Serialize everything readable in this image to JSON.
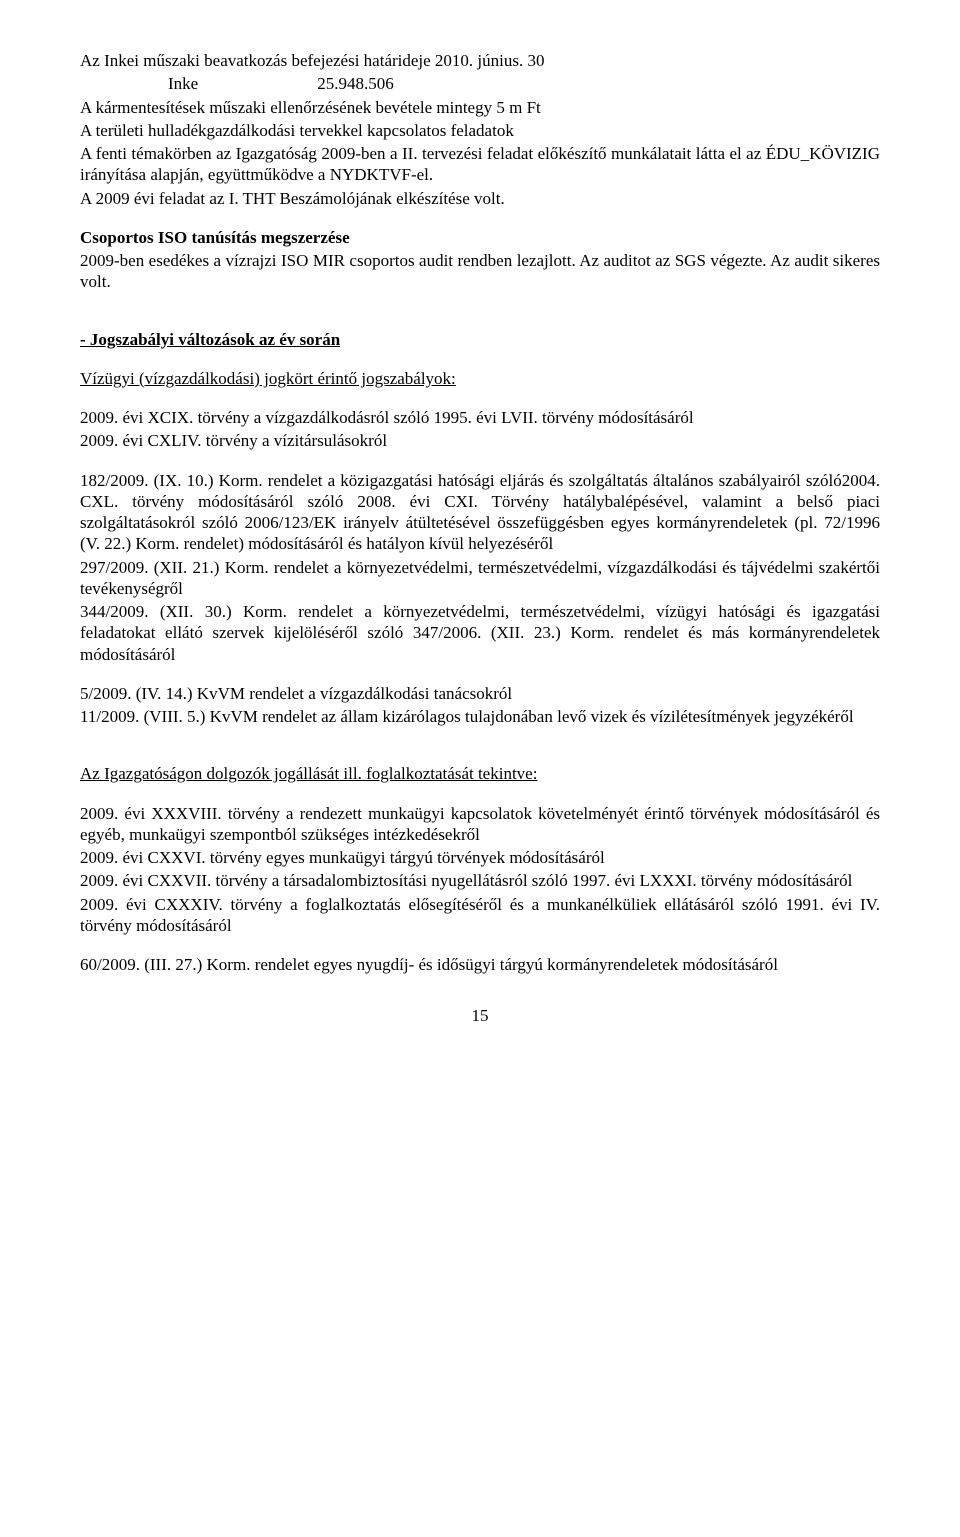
{
  "p1": "Az Inkei műszaki beavatkozás befejezési határideje 2010. június. 30",
  "p2": "Inke                            25.948.506",
  "p3": "A kármentesítések műszaki ellenőrzésének bevétele mintegy 5 m Ft",
  "p4": "A területi hulladékgazdálkodási tervekkel kapcsolatos feladatok",
  "p5": "A fenti témakörben az Igazgatóság 2009-ben a II. tervezési feladat előkészítő munkálatait látta el az ÉDU_KÖVIZIG irányítása alapján, együttműködve a NYDKTVF-el.",
  "p6": "A 2009 évi feladat az I. THT Beszámolójának elkészítése volt.",
  "h1": "Csoportos ISO tanúsítás megszerzése",
  "p7": "2009-ben esedékes a vízrajzi ISO MIR csoportos audit rendben lezajlott. Az auditot az SGS végezte. Az audit sikeres volt.",
  "h2": "- Jogszabályi változások az év során",
  "h3": "Vízügyi (vízgazdálkodási) jogkört érintő jogszabályok:",
  "p8": "2009. évi XCIX. törvény a vízgazdálkodásról szóló 1995. évi LVII. törvény módosításáról",
  "p9": "2009. évi CXLIV. törvény a vízitársulásokról",
  "p10": "182/2009. (IX. 10.) Korm. rendelet a közigazgatási hatósági eljárás és szolgáltatás általános szabályairól szóló2004. CXL. törvény módosításáról szóló 2008. évi CXI. Törvény hatálybalépésével, valamint a belső piaci szolgáltatásokról szóló 2006/123/EK irányelv átültetésével összefüggésben egyes kormányrendeletek (pl. 72/1996 (V. 22.) Korm. rendelet) módosításáról és hatályon kívül helyezéséről",
  "p11": "297/2009. (XII. 21.) Korm. rendelet a környezetvédelmi, természetvédelmi, vízgazdálkodási és tájvédelmi szakértői tevékenységről",
  "p12": "344/2009. (XII. 30.) Korm. rendelet a környezetvédelmi, természetvédelmi, vízügyi hatósági és igazgatási feladatokat ellátó szervek kijelöléséről szóló 347/2006. (XII. 23.) Korm. rendelet és más kormányrendeletek módosításáról",
  "p13": "5/2009. (IV. 14.) KvVM rendelet a vízgazdálkodási tanácsokról",
  "p14": "11/2009. (VIII. 5.) KvVM rendelet az állam kizárólagos tulajdonában levő vizek és vízilétesítmények jegyzékéről",
  "h4": "Az Igazgatóságon dolgozók jogállását ill. foglalkoztatását tekintve:",
  "p15": "2009. évi XXXVIII. törvény a rendezett munkaügyi kapcsolatok követelményét érintő törvények módosításáról és egyéb, munkaügyi szempontból szükséges intézkedésekről",
  "p16": "2009. évi CXXVI. törvény egyes munkaügyi tárgyú törvények módosításáról",
  "p17": "2009. évi CXXVII. törvény a társadalombiztosítási nyugellátásról szóló 1997. évi LXXXI. törvény módosításáról",
  "p18": "2009. évi CXXXIV. törvény a foglalkoztatás elősegítéséről és a munkanélküliek ellátásáról szóló 1991. évi IV. törvény módosításáról",
  "p19": "60/2009. (III. 27.) Korm. rendelet egyes nyugdíj- és idősügyi tárgyú kormányrendeletek módosításáról",
  "pagenum": "15"
}
